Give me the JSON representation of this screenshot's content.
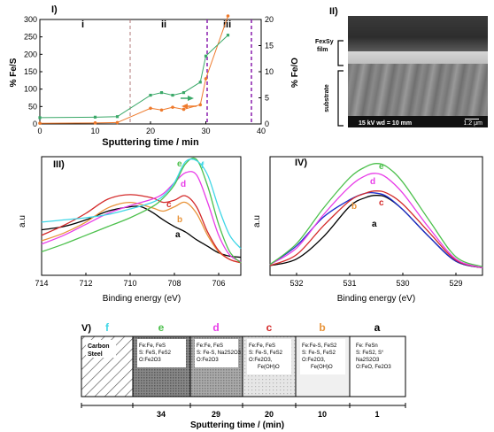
{
  "panel_i": {
    "label": "I)",
    "regions": [
      "i",
      "ii",
      "iii"
    ],
    "ylabel_left": "% Fe/S",
    "ylabel_right": "% Fe/O",
    "xlabel": "Sputtering time / min",
    "x_ticks": [
      "0",
      "10",
      "20",
      "30",
      "40"
    ],
    "y_left_ticks": [
      "0",
      "50",
      "100",
      "150",
      "200",
      "250",
      "300"
    ],
    "y_right_ticks": [
      "0",
      "5",
      "10",
      "15",
      "20"
    ]
  },
  "panel_ii": {
    "label": "II)",
    "film_label_line1": "FexSy",
    "film_label_line2": "film",
    "substrate_label": "substrate",
    "info": "15  kV  wd = 10 mm",
    "scale": "1.2  μm"
  },
  "panel_iii": {
    "label": "III)",
    "ylabel": "a.u",
    "xlabel": "Binding energy (eV)",
    "x_ticks": [
      "714",
      "712",
      "710",
      "708",
      "706"
    ],
    "curve_labels": [
      "f",
      "e",
      "d",
      "c",
      "b",
      "a"
    ]
  },
  "panel_iv": {
    "label": "IV)",
    "ylabel": "a.u",
    "xlabel": "Binding energy (eV)",
    "x_ticks": [
      "532",
      "531",
      "530",
      "529"
    ],
    "curve_labels": [
      "e",
      "d",
      "c",
      "b",
      "a"
    ]
  },
  "panel_v": {
    "label": "V)",
    "column_letters": [
      "f",
      "e",
      "d",
      "c",
      "b",
      "a"
    ],
    "carbon_steel": [
      "Carbon",
      "Steel"
    ],
    "cells": [
      {
        "lines": [
          "Fe:Fe, FeS",
          "S: FeS, FeS2",
          "O:Fe2O3"
        ]
      },
      {
        "lines": [
          "Fe:Fe, FeS",
          "S: Fe-S, Na2S2O3",
          "O:Fe2O3"
        ]
      },
      {
        "lines": [
          "Fe:Fe, FeS",
          "S: Fe-S, FeS2",
          "O:Fe2O3,",
          "Fe(OH)O"
        ]
      },
      {
        "lines": [
          "Fe:Fe-S, FeS2",
          "S: Fe-S, FeS2",
          "O:Fe2O3,",
          "Fe(OH)O"
        ]
      },
      {
        "lines": [
          "Fe: FeSn",
          "S: FeS2, S°",
          "Na2S2O3",
          "O:FeO, Fe2O3"
        ]
      }
    ],
    "times": [
      "34",
      "29",
      "20",
      "10",
      "1"
    ],
    "xlabel": "Sputtering time / (min)"
  },
  "colors": {
    "a": "#000000",
    "b": "#e8943a",
    "c": "#d42a2a",
    "d": "#e83ce8",
    "e": "#4cc04c",
    "f": "#3fd6e6",
    "fe_s": "#ee7a2c",
    "fe_o": "#3aa868",
    "blue": "#1a2ccc"
  },
  "chart_data": [
    {
      "type": "line",
      "xlabel": "Sputtering time / min",
      "ylabel": "% Fe/S",
      "xlim": [
        0,
        40
      ],
      "ylim": [
        0,
        300
      ],
      "y2label": "% Fe/O",
      "y2lim": [
        0,
        20
      ],
      "series": [
        {
          "axis": "left",
          "x": [
            0,
            10,
            14,
            20,
            22,
            24,
            26,
            29,
            30,
            34
          ],
          "y": [
            2,
            3,
            4,
            45,
            40,
            48,
            42,
            55,
            130,
            325
          ]
        },
        {
          "axis": "right",
          "x": [
            0,
            10,
            14,
            20,
            22,
            24,
            26,
            29,
            30,
            34
          ],
          "y": [
            1.2,
            1.3,
            1.4,
            5.5,
            6,
            5.5,
            6,
            8,
            13,
            17
          ]
        }
      ]
    },
    {
      "type": "line",
      "xlabel": "Binding energy (eV)",
      "ylabel": "a.u",
      "xlim": [
        714,
        705
      ],
      "series": [
        {
          "name": "a",
          "x": [
            714,
            713,
            712,
            711,
            710,
            709.5,
            709,
            708.5,
            708,
            707.5,
            707,
            706.5,
            706,
            705.5,
            705
          ],
          "y": [
            0.35,
            0.38,
            0.44,
            0.52,
            0.56,
            0.56,
            0.51,
            0.44,
            0.38,
            0.33,
            0.26,
            0.2,
            0.14,
            0.11,
            0.1
          ]
        },
        {
          "name": "b",
          "x": [
            714,
            713,
            712,
            711,
            710,
            709,
            708.5,
            708,
            707.5,
            707,
            706.5,
            706,
            705.5,
            705
          ],
          "y": [
            0.25,
            0.32,
            0.42,
            0.55,
            0.6,
            0.55,
            0.52,
            0.56,
            0.6,
            0.5,
            0.3,
            0.15,
            0.08,
            0.05
          ]
        },
        {
          "name": "c",
          "x": [
            714,
            713,
            712,
            711,
            710,
            709,
            708.5,
            708,
            707.5,
            707,
            706.5,
            706,
            705.5,
            705
          ],
          "y": [
            0.3,
            0.39,
            0.5,
            0.63,
            0.67,
            0.64,
            0.6,
            0.62,
            0.66,
            0.56,
            0.33,
            0.16,
            0.08,
            0.05
          ]
        },
        {
          "name": "d",
          "x": [
            714,
            713,
            712,
            711,
            710,
            709,
            708.5,
            708,
            707.5,
            707,
            706.5,
            706,
            705.5,
            705
          ],
          "y": [
            0.22,
            0.3,
            0.4,
            0.5,
            0.57,
            0.63,
            0.68,
            0.78,
            0.87,
            0.85,
            0.6,
            0.3,
            0.12,
            0.06
          ]
        },
        {
          "name": "e",
          "x": [
            714,
            713,
            712,
            711,
            710,
            709,
            708.5,
            708,
            707.5,
            707,
            706.5,
            706,
            705.5,
            705
          ],
          "y": [
            0.15,
            0.22,
            0.3,
            0.38,
            0.46,
            0.56,
            0.64,
            0.76,
            0.95,
            0.99,
            0.75,
            0.4,
            0.15,
            0.05
          ]
        },
        {
          "name": "f",
          "x": [
            714,
            713,
            712,
            711,
            710,
            709,
            708.5,
            708,
            707.5,
            707,
            706.5,
            706,
            705.5,
            705
          ],
          "y": [
            0.42,
            0.44,
            0.46,
            0.49,
            0.54,
            0.6,
            0.66,
            0.78,
            0.97,
            0.98,
            0.85,
            0.55,
            0.3,
            0.18
          ]
        }
      ]
    },
    {
      "type": "line",
      "xlabel": "Binding energy (eV)",
      "ylabel": "a.u",
      "xlim": [
        532.5,
        528.5
      ],
      "series": [
        {
          "name": "a",
          "x": [
            532.5,
            532,
            531.5,
            531,
            530.7,
            530.5,
            530.3,
            530,
            529.5,
            529,
            528.5
          ],
          "y": [
            0.04,
            0.1,
            0.3,
            0.58,
            0.66,
            0.68,
            0.66,
            0.55,
            0.3,
            0.08,
            0.02
          ]
        },
        {
          "name": "b",
          "x": [
            532.5,
            532,
            531.5,
            531,
            530.7,
            530.5,
            530.3,
            530,
            529.5,
            529,
            528.5
          ],
          "y": [
            0.05,
            0.22,
            0.48,
            0.64,
            0.7,
            0.7,
            0.67,
            0.55,
            0.3,
            0.08,
            0.02
          ]
        },
        {
          "name": "c",
          "x": [
            532.5,
            532,
            531.5,
            531,
            530.7,
            530.5,
            530.3,
            530,
            529.5,
            529,
            528.5
          ],
          "y": [
            0.04,
            0.14,
            0.4,
            0.63,
            0.7,
            0.72,
            0.7,
            0.6,
            0.34,
            0.09,
            0.02
          ]
        },
        {
          "name": "d",
          "x": [
            532.5,
            532,
            531.5,
            531,
            530.7,
            530.5,
            530.3,
            530,
            529.5,
            529,
            528.5
          ],
          "y": [
            0.05,
            0.2,
            0.5,
            0.76,
            0.86,
            0.88,
            0.84,
            0.7,
            0.38,
            0.1,
            0.02
          ]
        },
        {
          "name": "e",
          "x": [
            532.5,
            532,
            531.5,
            531,
            530.7,
            530.5,
            530.3,
            530,
            529.5,
            529,
            528.5
          ],
          "y": [
            0.05,
            0.24,
            0.56,
            0.84,
            0.94,
            0.97,
            0.94,
            0.8,
            0.45,
            0.12,
            0.03
          ]
        }
      ]
    }
  ]
}
